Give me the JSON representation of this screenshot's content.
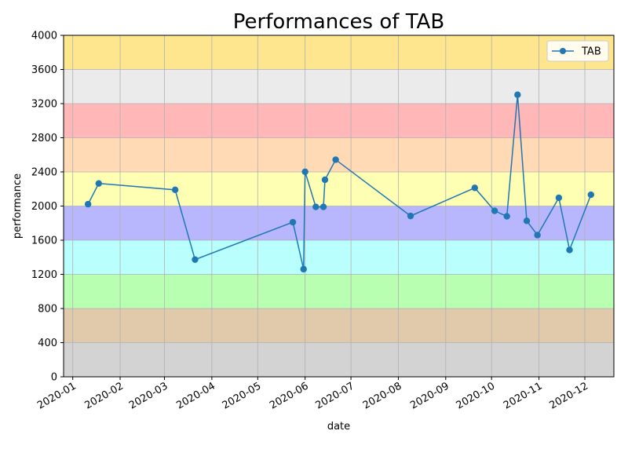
{
  "chart_data": {
    "type": "line",
    "title": "Performances of TAB",
    "xlabel": "date",
    "ylabel": "performance",
    "ylim": [
      0,
      4000
    ],
    "xlim": [
      "2019-12-26",
      "2020-12-20"
    ],
    "yticks": [
      0,
      400,
      800,
      1200,
      1600,
      2000,
      2400,
      2800,
      3200,
      3600,
      4000
    ],
    "xticks": [
      "2020-01-01",
      "2020-02-01",
      "2020-03-01",
      "2020-04-01",
      "2020-05-01",
      "2020-06-01",
      "2020-07-01",
      "2020-08-01",
      "2020-09-01",
      "2020-10-01",
      "2020-11-01",
      "2020-12-01"
    ],
    "xtick_labels": [
      "2020-01",
      "2020-02",
      "2020-03",
      "2020-04",
      "2020-05",
      "2020-06",
      "2020-07",
      "2020-08",
      "2020-09",
      "2020-10",
      "2020-11",
      "2020-12"
    ],
    "grid": true,
    "legend_position": "top-right",
    "bands": [
      {
        "from": 0,
        "to": 400,
        "color": "#d3d3d3"
      },
      {
        "from": 400,
        "to": 800,
        "color": "#e1c9ab"
      },
      {
        "from": 800,
        "to": 1200,
        "color": "#b8ffb2"
      },
      {
        "from": 1200,
        "to": 1600,
        "color": "#b8fffe"
      },
      {
        "from": 1600,
        "to": 2000,
        "color": "#b8b7fe"
      },
      {
        "from": 2000,
        "to": 2400,
        "color": "#ffffb4"
      },
      {
        "from": 2400,
        "to": 2800,
        "color": "#ffdab4"
      },
      {
        "from": 2800,
        "to": 3200,
        "color": "#ffb7b7"
      },
      {
        "from": 3200,
        "to": 3600,
        "color": "#ebebeb"
      },
      {
        "from": 3600,
        "to": 4000,
        "color": "#fde68e"
      }
    ],
    "series": [
      {
        "name": "TAB",
        "color": "#1f77b4",
        "points": [
          {
            "x": "2020-01-11",
            "y": 2022
          },
          {
            "x": "2020-01-18",
            "y": 2265
          },
          {
            "x": "2020-03-08",
            "y": 2190
          },
          {
            "x": "2020-03-21",
            "y": 1373
          },
          {
            "x": "2020-05-24",
            "y": 1811
          },
          {
            "x": "2020-05-31",
            "y": 1261
          },
          {
            "x": "2020-06-01",
            "y": 2402
          },
          {
            "x": "2020-06-08",
            "y": 1990
          },
          {
            "x": "2020-06-13",
            "y": 1990
          },
          {
            "x": "2020-06-14",
            "y": 2308
          },
          {
            "x": "2020-06-21",
            "y": 2543
          },
          {
            "x": "2020-08-09",
            "y": 1884
          },
          {
            "x": "2020-09-20",
            "y": 2213
          },
          {
            "x": "2020-10-03",
            "y": 1944
          },
          {
            "x": "2020-10-11",
            "y": 1880
          },
          {
            "x": "2020-10-18",
            "y": 3304
          },
          {
            "x": "2020-10-24",
            "y": 1827
          },
          {
            "x": "2020-10-31",
            "y": 1660
          },
          {
            "x": "2020-11-14",
            "y": 2097
          },
          {
            "x": "2020-11-21",
            "y": 1486
          },
          {
            "x": "2020-12-05",
            "y": 2133
          }
        ]
      }
    ]
  }
}
